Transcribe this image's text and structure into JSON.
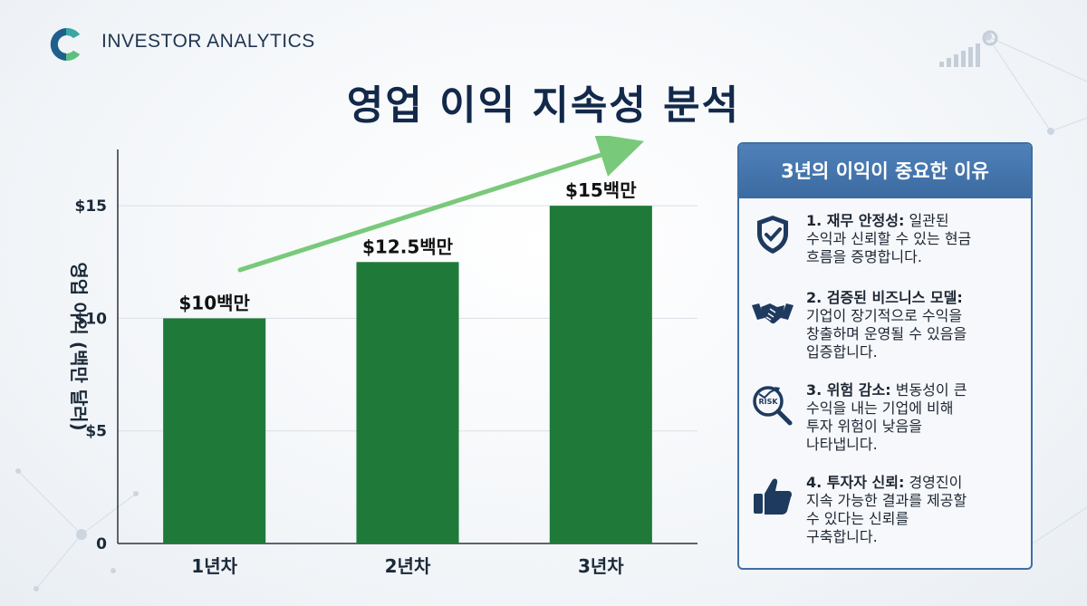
{
  "brand": {
    "name": "INVESTOR ANALYTICS"
  },
  "page": {
    "title": "영업 이익 지속성 분석"
  },
  "chart_data": {
    "type": "bar",
    "categories": [
      "1년차",
      "2년차",
      "3년차"
    ],
    "values": [
      10,
      12.5,
      15
    ],
    "data_labels": [
      "$10백만",
      "$12.5백만",
      "$15백만"
    ],
    "ylabel": "영업 이익 (백만 달러)",
    "ylim": [
      0,
      17.5
    ],
    "yticks": [
      0,
      5,
      10,
      15
    ],
    "ytick_labels": [
      "0",
      "$5",
      "$10",
      "$15"
    ],
    "bar_color": "#1f7a3a",
    "trend_arrow_color": "#6cc46c",
    "grid": true
  },
  "panel": {
    "title": "3년의 이익이 중요한 이유",
    "items": [
      {
        "icon": "shield-check-icon",
        "heading": "1. 재무 안정성:",
        "lines": [
          "일관된",
          "수익과 신뢰할 수 있는 현금",
          "흐름을 증명합니다."
        ]
      },
      {
        "icon": "handshake-icon",
        "heading": "2. 검증된 비즈니스 모델:",
        "lines": [
          "",
          "기업이 장기적으로 수익을",
          "창출하며 운영될 수 있음을",
          "입증합니다."
        ]
      },
      {
        "icon": "risk-magnifier-icon",
        "icon_text": "RISK",
        "heading": "3. 위험 감소:",
        "lines": [
          "변동성이 큰",
          "수익을 내는 기업에 비해",
          "투자 위험이 낮음을",
          "나타냅니다."
        ]
      },
      {
        "icon": "thumbs-up-icon",
        "heading": "4. 투자자 신뢰:",
        "lines": [
          "경영진이",
          "지속 가능한 결과를 제공할",
          "수 있다는 신뢰를",
          "구축합니다."
        ]
      }
    ]
  },
  "colors": {
    "accent": "#3c6aa1",
    "title": "#13294b",
    "bar": "#1f7a3a"
  }
}
